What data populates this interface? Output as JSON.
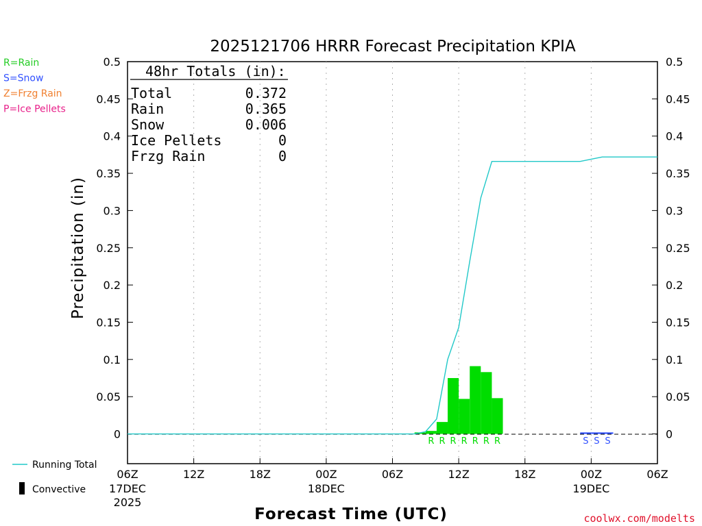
{
  "chart_data": {
    "type": "bar",
    "title": "2025121706 HRRR Forecast Precipitation KPIA",
    "xlabel": "Forecast Time (UTC)",
    "ylabel": "Precipitation (in)",
    "ylim": [
      -0.04,
      0.5
    ],
    "yticks": [
      "0.5",
      "0.45",
      "0.4",
      "0.35",
      "0.3",
      "0.25",
      "0.2",
      "0.15",
      "0.1",
      "0.05",
      "0"
    ],
    "x_range_hours": [
      0,
      48
    ],
    "x_ticks": [
      {
        "hour": 0,
        "label": "06Z",
        "sub1": "17DEC",
        "sub2": "2025"
      },
      {
        "hour": 6,
        "label": "12Z",
        "sub1": "",
        "sub2": ""
      },
      {
        "hour": 12,
        "label": "18Z",
        "sub1": "",
        "sub2": ""
      },
      {
        "hour": 18,
        "label": "00Z",
        "sub1": "18DEC",
        "sub2": ""
      },
      {
        "hour": 24,
        "label": "06Z",
        "sub1": "",
        "sub2": ""
      },
      {
        "hour": 30,
        "label": "12Z",
        "sub1": "",
        "sub2": ""
      },
      {
        "hour": 36,
        "label": "18Z",
        "sub1": "",
        "sub2": ""
      },
      {
        "hour": 42,
        "label": "00Z",
        "sub1": "19DEC",
        "sub2": ""
      },
      {
        "hour": 48,
        "label": "06Z",
        "sub1": "",
        "sub2": ""
      }
    ],
    "series": [
      {
        "name": "Rain",
        "color": "#00dd00",
        "kind": "hourly_bars",
        "hours": [
          27,
          28,
          29,
          30,
          31,
          32,
          33,
          34
        ],
        "values": [
          0.002,
          0.004,
          0.016,
          0.075,
          0.047,
          0.091,
          0.083,
          0.048
        ]
      },
      {
        "name": "Snow",
        "color": "#3050ff",
        "kind": "hourly_bars",
        "hours": [
          42,
          43,
          44
        ],
        "values": [
          0.002,
          0.002,
          0.002
        ]
      },
      {
        "name": "Running Total",
        "color": "#20c8c8",
        "kind": "line",
        "x": [
          0,
          26,
          27,
          28,
          29,
          30,
          31,
          32,
          33,
          34,
          41,
          42,
          43,
          44,
          48
        ],
        "y": [
          0,
          0,
          0.003,
          0.02,
          0.1,
          0.143,
          0.232,
          0.317,
          0.366,
          0.366,
          0.366,
          0.369,
          0.372,
          0.372,
          0.372
        ]
      }
    ],
    "ptype_markers": [
      {
        "hour": 28,
        "letter": "R",
        "color": "#00dd00"
      },
      {
        "hour": 29,
        "letter": "R",
        "color": "#00dd00"
      },
      {
        "hour": 30,
        "letter": "R",
        "color": "#00dd00"
      },
      {
        "hour": 31,
        "letter": "R",
        "color": "#00dd00"
      },
      {
        "hour": 32,
        "letter": "R",
        "color": "#00dd00"
      },
      {
        "hour": 33,
        "letter": "R",
        "color": "#00dd00"
      },
      {
        "hour": 34,
        "letter": "R",
        "color": "#00dd00"
      },
      {
        "hour": 42,
        "letter": "S",
        "color": "#3050ff"
      },
      {
        "hour": 43,
        "letter": "S",
        "color": "#3050ff"
      },
      {
        "hour": 44,
        "letter": "S",
        "color": "#3050ff"
      }
    ],
    "totals_box": {
      "header": "48hr Totals (in):",
      "rows": [
        {
          "label": "Total",
          "value": "0.372"
        },
        {
          "label": "Rain",
          "value": "0.365"
        },
        {
          "label": "Snow",
          "value": "0.006"
        },
        {
          "label": "Ice Pellets",
          "value": "0"
        },
        {
          "label": "Frzg Rain",
          "value": "0"
        }
      ]
    },
    "ptype_legend": [
      {
        "text": "R=Rain",
        "color": "#22cc22"
      },
      {
        "text": "S=Snow",
        "color": "#3050ff"
      },
      {
        "text": "Z=Frzg Rain",
        "color": "#f08030"
      },
      {
        "text": "P=Ice Pellets",
        "color": "#e8208a"
      }
    ],
    "bottom_legend": {
      "running_total": "Running Total",
      "running_total_color": "#20c8c8",
      "convective": "Convective"
    },
    "credit": "coolwx.com/modelts",
    "grid": "dotted vertical every 6h",
    "zero_line": "dashed"
  }
}
